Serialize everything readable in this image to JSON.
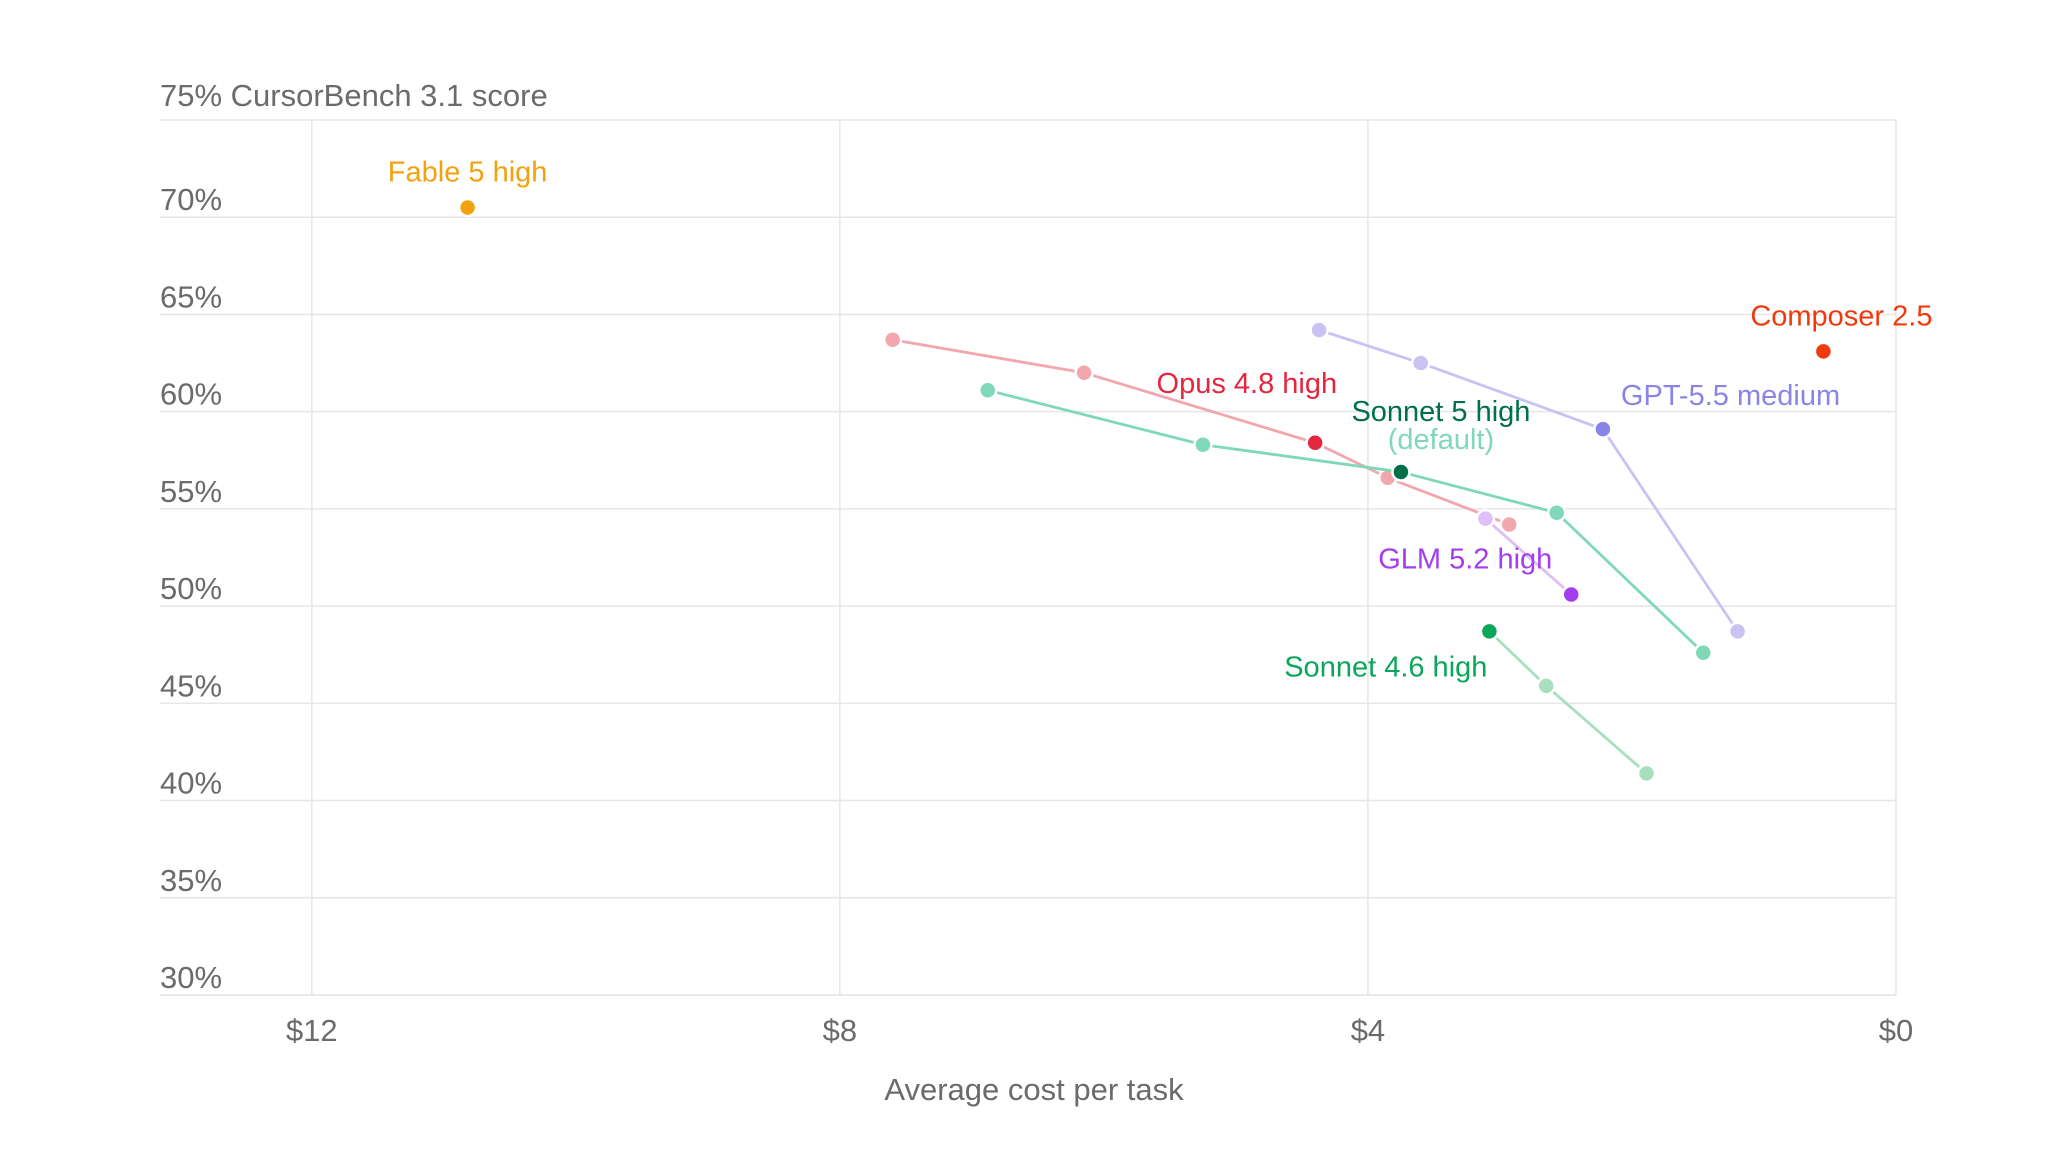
{
  "chart_data": {
    "type": "scatter",
    "title": "",
    "xlabel": "Average cost per task",
    "ylabel": "CursorBench 3.1 score",
    "y_top_label": "75% CursorBench 3.1 score",
    "xlim": [
      13.15,
      0
    ],
    "ylim": [
      30,
      75
    ],
    "x_ticks": [
      {
        "value": 12,
        "label": "$12"
      },
      {
        "value": 8,
        "label": "$8"
      },
      {
        "value": 4,
        "label": "$4"
      },
      {
        "value": 0,
        "label": "$0"
      }
    ],
    "y_ticks": [
      {
        "value": 70,
        "label": "70%"
      },
      {
        "value": 65,
        "label": "65%"
      },
      {
        "value": 60,
        "label": "60%"
      },
      {
        "value": 55,
        "label": "55%"
      },
      {
        "value": 50,
        "label": "50%"
      },
      {
        "value": 45,
        "label": "45%"
      },
      {
        "value": 40,
        "label": "40%"
      },
      {
        "value": 35,
        "label": "35%"
      },
      {
        "value": 30,
        "label": "30%"
      }
    ],
    "grid": true,
    "series": [
      {
        "name": "Opus 4.8 high",
        "color": "#e5263f",
        "line_color": "#f2a7ae",
        "label_anchor": "end",
        "points": [
          {
            "x": 7.6,
            "y": 63.7
          },
          {
            "x": 6.15,
            "y": 62.0
          },
          {
            "x": 4.4,
            "y": 58.4,
            "highlight": true
          },
          {
            "x": 3.85,
            "y": 56.6
          },
          {
            "x": 2.93,
            "y": 54.2
          }
        ]
      },
      {
        "name": "Sonnet 5 high",
        "sublabel": "(default)",
        "color": "#00704a",
        "line_color": "#7fd8b7",
        "sublabel_color": "#7fd8b7",
        "label_anchor": "middle",
        "points": [
          {
            "x": 6.88,
            "y": 61.1
          },
          {
            "x": 5.25,
            "y": 58.3
          },
          {
            "x": 3.75,
            "y": 56.9,
            "highlight": true
          },
          {
            "x": 2.57,
            "y": 54.8
          },
          {
            "x": 1.46,
            "y": 47.6
          }
        ]
      },
      {
        "name": "GPT-5.5 medium",
        "color": "#8b84e8",
        "line_color": "#c8c3f3",
        "label_anchor": "start",
        "points": [
          {
            "x": 4.37,
            "y": 64.2
          },
          {
            "x": 3.6,
            "y": 62.5
          },
          {
            "x": 2.22,
            "y": 59.1,
            "highlight": true
          },
          {
            "x": 1.2,
            "y": 48.7
          }
        ]
      },
      {
        "name": "GLM 5.2 high",
        "color": "#a43cf0",
        "line_color": "#e0bef8",
        "label_anchor": "middle",
        "points": [
          {
            "x": 3.11,
            "y": 54.5
          },
          {
            "x": 2.46,
            "y": 50.6,
            "highlight": true
          }
        ]
      },
      {
        "name": "Sonnet 4.6 high",
        "color": "#0aa65a",
        "line_color": "#a8e0bf",
        "label_anchor": "end",
        "points": [
          {
            "x": 3.08,
            "y": 48.7,
            "highlight": true
          },
          {
            "x": 2.65,
            "y": 45.9
          },
          {
            "x": 1.89,
            "y": 41.4
          }
        ]
      },
      {
        "name": "Fable 5 high",
        "color": "#f2a20e",
        "line_color": "#f2a20e",
        "label_anchor": "middle",
        "points": [
          {
            "x": 10.82,
            "y": 70.5,
            "highlight": true
          }
        ]
      },
      {
        "name": "Composer 2.5",
        "color": "#ee3a0c",
        "line_color": "#ee3a0c",
        "label_anchor": "middle",
        "points": [
          {
            "x": 0.55,
            "y": 63.1,
            "highlight": true
          }
        ]
      }
    ]
  }
}
